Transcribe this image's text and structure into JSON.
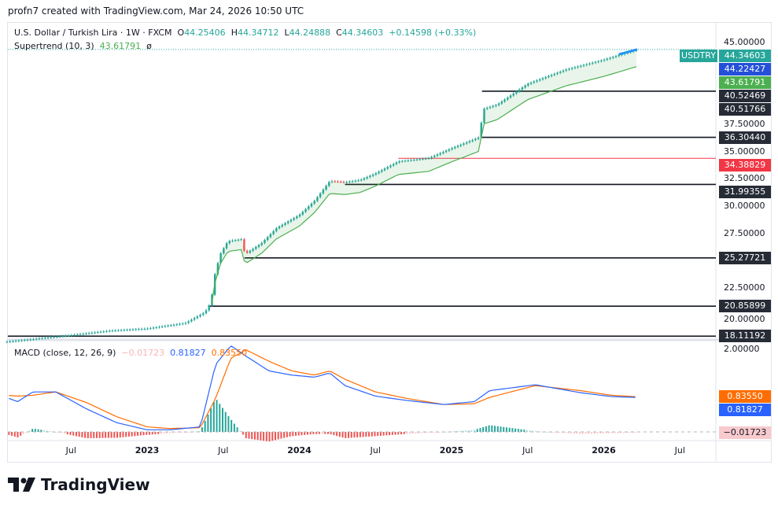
{
  "credit": "profn7 created with TradingView.com, Mar 24, 2026 10:50 UTC",
  "legend": {
    "symbol": "U.S. Dollar / Turkish Lira · 1W · FXCM",
    "o_label": "O",
    "o": "44.25406",
    "h_label": "H",
    "h": "44.34712",
    "l_label": "L",
    "l": "44.24888",
    "c_label": "C",
    "c": "44.34603",
    "change": "+0.14598 (+0.33%)",
    "supertrend": "Supertrend (10, 3)",
    "supertrend_value": "43.61791",
    "supertrend_extra": "ø"
  },
  "macd_legend": {
    "name": "MACD (close, 12, 26, 9)",
    "hist": "−0.01723",
    "macd": "0.81827",
    "signal": "0.83550"
  },
  "price_axis": {
    "ticks": [
      "45.00000",
      "37.50000",
      "35.00000",
      "32.50000",
      "30.00000",
      "27.50000",
      "22.50000",
      "20.00000"
    ],
    "tick_values": [
      45,
      37.5,
      35,
      32.5,
      30,
      27.5,
      22.5,
      20
    ]
  },
  "price_tags": [
    {
      "label": "USDTRY",
      "value": "44.34603",
      "v": 44.34603,
      "color": "#26a69a"
    },
    {
      "value": "44.22427",
      "v": 44.22427,
      "color": "#2450d8"
    },
    {
      "value": "43.61791",
      "v": 43.61791,
      "color": "#4caf50"
    },
    {
      "value": "40.52469",
      "v": 40.52469,
      "color": "#262b36"
    },
    {
      "value": "40.51766",
      "v": 39.9,
      "color": "#262b36"
    },
    {
      "value": "36.30440",
      "v": 36.3044,
      "color": "#262b36"
    },
    {
      "value": "34.38829",
      "v": 34.38829,
      "color": "#f23645"
    },
    {
      "value": "31.99355",
      "v": 31.99355,
      "color": "#262b36"
    },
    {
      "value": "25.27721",
      "v": 25.27721,
      "color": "#262b36"
    },
    {
      "value": "20.85899",
      "v": 20.85899,
      "color": "#262b36"
    },
    {
      "value": "18.11192",
      "v": 18.11192,
      "color": "#262b36"
    }
  ],
  "macd_axis": {
    "tick": "2.00000",
    "tags": [
      {
        "value": "0.83550",
        "v": 0.8355,
        "color": "#ff6d00"
      },
      {
        "value": "0.81827",
        "v": 0.81827,
        "color": "#2962ff"
      },
      {
        "value": "−0.01723",
        "v": -0.01723,
        "color": "#f8c9cd",
        "text": "#131722"
      }
    ]
  },
  "time_axis": [
    {
      "label": "Jul",
      "t": 2022.5,
      "bold": false
    },
    {
      "label": "2023",
      "t": 2023,
      "bold": true
    },
    {
      "label": "Jul",
      "t": 2023.5,
      "bold": false
    },
    {
      "label": "2024",
      "t": 2024,
      "bold": true
    },
    {
      "label": "Jul",
      "t": 2024.5,
      "bold": false
    },
    {
      "label": "2025",
      "t": 2025,
      "bold": true
    },
    {
      "label": "Jul",
      "t": 2025.5,
      "bold": false
    },
    {
      "label": "2026",
      "t": 2026,
      "bold": true
    },
    {
      "label": "Jul",
      "t": 2026.5,
      "bold": false
    }
  ],
  "chart_data": {
    "type": "candlestick",
    "symbol": "USDTRY",
    "interval": "1W",
    "price_path": [
      [
        2022.08,
        17.6
      ],
      [
        2022.5,
        18.2
      ],
      [
        2022.75,
        18.6
      ],
      [
        2023.0,
        18.8
      ],
      [
        2023.25,
        19.3
      ],
      [
        2023.38,
        20.3
      ],
      [
        2023.42,
        21.2
      ],
      [
        2023.44,
        23.5
      ],
      [
        2023.48,
        25.6
      ],
      [
        2023.53,
        26.8
      ],
      [
        2023.63,
        27.0
      ],
      [
        2023.64,
        25.6
      ],
      [
        2023.75,
        26.6
      ],
      [
        2023.85,
        28.0
      ],
      [
        2024.0,
        29.2
      ],
      [
        2024.1,
        30.5
      ],
      [
        2024.2,
        32.3
      ],
      [
        2024.3,
        32.2
      ],
      [
        2024.4,
        32.4
      ],
      [
        2024.5,
        33.0
      ],
      [
        2024.65,
        34.1
      ],
      [
        2024.85,
        34.4
      ],
      [
        2025.0,
        35.3
      ],
      [
        2025.18,
        36.3
      ],
      [
        2025.21,
        38.9
      ],
      [
        2025.3,
        39.3
      ],
      [
        2025.5,
        41.2
      ],
      [
        2025.75,
        42.5
      ],
      [
        2026.0,
        43.4
      ],
      [
        2026.22,
        44.35
      ]
    ],
    "supertrend_start": 2023.42,
    "levels": [
      {
        "v": 18.11192,
        "from": 2021.9,
        "color": "#131722"
      },
      {
        "v": 20.85899,
        "from": 2023.4,
        "color": "#131722"
      },
      {
        "v": 25.27721,
        "from": 2023.64,
        "color": "#131722"
      },
      {
        "v": 31.99355,
        "from": 2024.3,
        "color": "#131722"
      },
      {
        "v": 34.38829,
        "from": 2024.65,
        "color": "#f23645"
      },
      {
        "v": 36.3044,
        "from": 2025.2,
        "color": "#131722"
      },
      {
        "v": 40.52469,
        "from": 2025.2,
        "color": "#131722"
      }
    ],
    "macd": [
      [
        2021.9,
        0.9,
        0.95
      ],
      [
        2022.05,
        0.85,
        0.88
      ],
      [
        2022.15,
        0.72,
        0.85
      ],
      [
        2022.25,
        0.95,
        0.87
      ],
      [
        2022.4,
        0.95,
        0.95
      ],
      [
        2022.6,
        0.55,
        0.7
      ],
      [
        2022.8,
        0.22,
        0.36
      ],
      [
        2023.0,
        0.05,
        0.12
      ],
      [
        2023.15,
        0.05,
        0.08
      ],
      [
        2023.35,
        0.12,
        0.1
      ],
      [
        2023.45,
        1.6,
        0.8
      ],
      [
        2023.55,
        2.05,
        1.75
      ],
      [
        2023.65,
        1.8,
        1.95
      ],
      [
        2023.8,
        1.45,
        1.68
      ],
      [
        2023.95,
        1.35,
        1.45
      ],
      [
        2024.1,
        1.3,
        1.35
      ],
      [
        2024.2,
        1.4,
        1.45
      ],
      [
        2024.3,
        1.1,
        1.25
      ],
      [
        2024.5,
        0.85,
        0.95
      ],
      [
        2024.7,
        0.75,
        0.8
      ],
      [
        2024.95,
        0.65,
        0.65
      ],
      [
        2025.15,
        0.72,
        0.67
      ],
      [
        2025.25,
        0.98,
        0.82
      ],
      [
        2025.55,
        1.12,
        1.1
      ],
      [
        2025.85,
        0.93,
        0.98
      ],
      [
        2026.05,
        0.84,
        0.87
      ],
      [
        2026.22,
        0.81827,
        0.8355
      ]
    ],
    "macd_range": [
      -0.2,
      2.2
    ]
  },
  "colors": {
    "up": "#26a69a",
    "down": "#ef5350",
    "macd": "#2962ff",
    "signal": "#ff6d00",
    "supertrend": "#4caf50"
  },
  "brand": "TradingView"
}
